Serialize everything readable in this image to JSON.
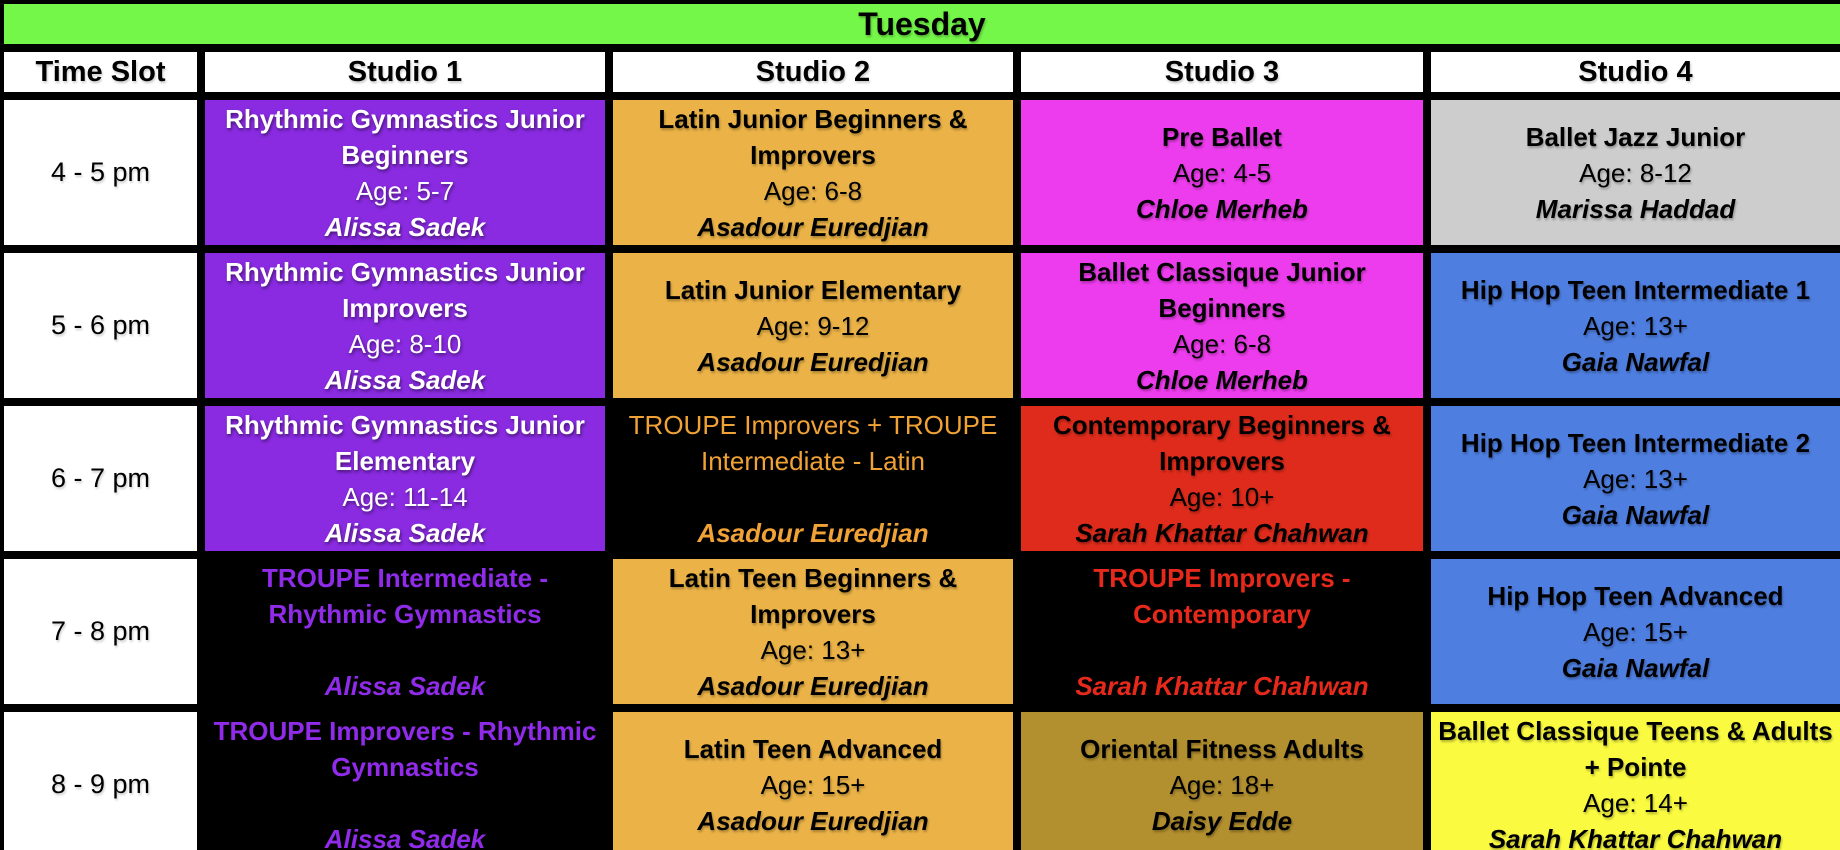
{
  "title": "Tuesday",
  "title_bar": {
    "bg": "green",
    "fg": "black"
  },
  "columns": [
    "Time Slot",
    "Studio 1",
    "Studio 2",
    "Studio 3",
    "Studio 4"
  ],
  "colors": {
    "green": "#74F748",
    "purple": "#8A2BE2",
    "gold": "#EBB347",
    "magenta": "#ED3CED",
    "silver": "#CDCDCD",
    "blue": "#4E7EE0",
    "red": "#DF2B1B",
    "bronze": "#B3902F",
    "yellow": "#FAFB40",
    "black": "#000000",
    "white": "#FFFFFF",
    "orangeText": "#F0A236",
    "purpleText": "#8F2BE9",
    "redText": "#E6291B"
  },
  "rows": [
    {
      "time": "4 - 5 pm",
      "cells": [
        {
          "title": "Rhythmic Gymnastics Junior Beginners",
          "age": "Age: 5-7",
          "teacher": "Alissa Sadek",
          "bg": "purple",
          "fg": "white"
        },
        {
          "title": "Latin Junior Beginners & Improvers",
          "age": "Age: 6-8",
          "teacher": "Asadour Euredjian",
          "bg": "gold",
          "fg": "black"
        },
        {
          "title": "Pre Ballet",
          "age": "Age: 4-5",
          "teacher": "Chloe Merheb",
          "bg": "magenta",
          "fg": "black"
        },
        {
          "title": "Ballet Jazz Junior",
          "age": "Age: 8-12",
          "teacher": "Marissa Haddad",
          "bg": "silver",
          "fg": "black"
        }
      ]
    },
    {
      "time": "5 - 6 pm",
      "cells": [
        {
          "title": "Rhythmic Gymnastics Junior Improvers",
          "age": "Age: 8-10",
          "teacher": "Alissa Sadek",
          "bg": "purple",
          "fg": "white"
        },
        {
          "title": "Latin Junior Elementary",
          "age": "Age: 9-12",
          "teacher": "Asadour Euredjian",
          "bg": "gold",
          "fg": "black"
        },
        {
          "title": "Ballet Classique Junior Beginners",
          "age": "Age: 6-8",
          "teacher": "Chloe Merheb",
          "bg": "magenta",
          "fg": "black"
        },
        {
          "title": "Hip Hop Teen Intermediate 1",
          "age": "Age: 13+",
          "teacher": "Gaia Nawfal",
          "bg": "blue",
          "fg": "black"
        }
      ]
    },
    {
      "time": "6 - 7 pm",
      "cells": [
        {
          "title": "Rhythmic Gymnastics Junior Elementary",
          "age": "Age: 11-14",
          "teacher": "Alissa Sadek",
          "bg": "purple",
          "fg": "white"
        },
        {
          "title": "TROUPE Improvers + TROUPE Intermediate - Latin",
          "age": "",
          "teacher": "Asadour Euredjian",
          "bg": "black",
          "fg": "orangeText",
          "title_weight": "normal"
        },
        {
          "title": "Contemporary Beginners & Improvers",
          "age": "Age: 10+",
          "teacher": "Sarah Khattar Chahwan",
          "bg": "red",
          "fg": "black"
        },
        {
          "title": "Hip Hop Teen Intermediate 2",
          "age": "Age: 13+",
          "teacher": "Gaia Nawfal",
          "bg": "blue",
          "fg": "black"
        }
      ]
    },
    {
      "time": "7 - 8 pm",
      "cells": [
        {
          "title": "TROUPE Intermediate - Rhythmic Gymnastics",
          "age": "",
          "teacher": "Alissa Sadek",
          "bg": "black",
          "fg": "purpleText"
        },
        {
          "title": "Latin Teen Beginners & Improvers",
          "age": "Age: 13+",
          "teacher": "Asadour Euredjian",
          "bg": "gold",
          "fg": "black"
        },
        {
          "title": "TROUPE Improvers - Contemporary",
          "age": "",
          "teacher": "Sarah Khattar Chahwan",
          "bg": "black",
          "fg": "redText"
        },
        {
          "title": "Hip Hop Teen Advanced",
          "age": "Age: 15+",
          "teacher": "Gaia Nawfal",
          "bg": "blue",
          "fg": "black"
        }
      ]
    },
    {
      "time": "8 - 9 pm",
      "cells": [
        {
          "title": "TROUPE Improvers - Rhythmic Gymnastics",
          "age": "",
          "teacher": "Alissa Sadek",
          "bg": "black",
          "fg": "purpleText"
        },
        {
          "title": "Latin Teen Advanced",
          "age": "Age: 15+",
          "teacher": "Asadour Euredjian",
          "bg": "gold",
          "fg": "black"
        },
        {
          "title": "Oriental Fitness Adults",
          "age": "Age: 18+",
          "teacher": "Daisy Edde",
          "bg": "bronze",
          "fg": "black"
        },
        {
          "title": "Ballet Classique Teens & Adults + Pointe",
          "age": "Age: 14+",
          "teacher": "Sarah Khattar Chahwan",
          "bg": "yellow",
          "fg": "black"
        }
      ]
    }
  ]
}
